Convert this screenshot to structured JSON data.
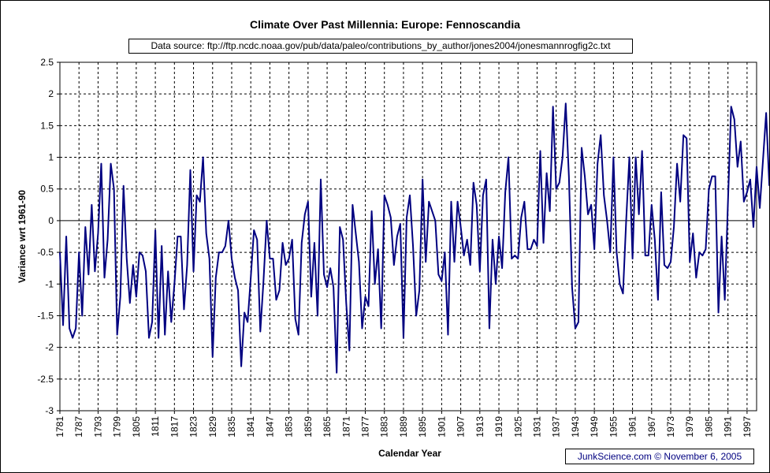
{
  "chart_data": {
    "type": "line",
    "title": "Climate Over Past Millennia: Europe: Fennoscandia",
    "subtitle": "Data source: ftp://ftp.ncdc.noaa.gov/pub/data/paleo/contributions_by_author/jones2004/jonesmannrogfig2c.txt",
    "xlabel": "Calendar Year",
    "ylabel": "Variance wrt 1961-90",
    "xlim": [
      1781,
      2000
    ],
    "ylim": [
      -3,
      2.5
    ],
    "y_ticks": [
      "2.5",
      "2",
      "1.5",
      "1",
      "0.5",
      "0",
      "-0.5",
      "-1",
      "-1.5",
      "-2",
      "-2.5",
      "-3"
    ],
    "x_tick_labels": [
      "1781",
      "1787",
      "1793",
      "1799",
      "1805",
      "1811",
      "1817",
      "1823",
      "1829",
      "1835",
      "1841",
      "1847",
      "1853",
      "1859",
      "1865",
      "1871",
      "1877",
      "1883",
      "1889",
      "1895",
      "1901",
      "1907",
      "1913",
      "1919",
      "1925",
      "1931",
      "1937",
      "1943",
      "1949",
      "1955",
      "1961",
      "1967",
      "1973",
      "1979",
      "1985",
      "1991",
      "1997"
    ],
    "grid": true,
    "series": [
      {
        "name": "Fennoscandia",
        "color": "#000080",
        "x_start": 1781,
        "x_step": 1,
        "values": [
          -0.5,
          -1.65,
          -0.25,
          -1.7,
          -1.85,
          -1.7,
          -0.5,
          -1.5,
          -0.1,
          -0.85,
          0.25,
          -0.8,
          -0.2,
          0.9,
          -0.9,
          -0.3,
          0.9,
          0.5,
          -1.8,
          -1.2,
          0.55,
          -0.6,
          -1.3,
          -0.7,
          -1.2,
          -0.5,
          -0.55,
          -0.8,
          -1.85,
          -1.6,
          -0.15,
          -1.85,
          -0.4,
          -1.8,
          -0.8,
          -1.6,
          -1.0,
          -0.25,
          -0.25,
          -1.4,
          -0.7,
          0.8,
          -0.8,
          0.4,
          0.3,
          1.0,
          -0.2,
          -0.6,
          -2.15,
          -0.9,
          -0.5,
          -0.5,
          -0.4,
          0.0,
          -0.6,
          -0.9,
          -1.1,
          -2.3,
          -1.45,
          -1.6,
          -0.9,
          -0.15,
          -0.3,
          -1.75,
          -0.95,
          0.0,
          -0.6,
          -0.6,
          -1.25,
          -1.1,
          -0.35,
          -0.7,
          -0.6,
          -0.3,
          -1.55,
          -1.8,
          -0.35,
          0.1,
          0.3,
          -1.2,
          -0.35,
          -1.5,
          0.65,
          -0.85,
          -1.05,
          -0.75,
          -1.05,
          -2.4,
          -0.1,
          -0.3,
          -1.3,
          -2.05,
          0.25,
          -0.2,
          -0.65,
          -1.7,
          -1.2,
          -1.35,
          0.15,
          -1.0,
          -0.45,
          -1.7,
          0.4,
          0.25,
          0.05,
          -0.7,
          -0.25,
          -0.05,
          -1.85,
          0.05,
          0.4,
          -0.4,
          -1.5,
          -1.1,
          0.65,
          -0.65,
          0.3,
          0.15,
          0.0,
          -0.85,
          -0.95,
          -0.5,
          -1.8,
          0.3,
          -0.65,
          0.3,
          -0.1,
          -0.55,
          -0.3,
          -0.7,
          0.6,
          0.25,
          -0.8,
          0.4,
          0.65,
          -1.7,
          -0.3,
          -1.0,
          -0.25,
          -0.75,
          0.45,
          1.0,
          -0.6,
          -0.55,
          -0.6,
          0.05,
          0.3,
          -0.45,
          -0.45,
          -0.3,
          -0.4,
          1.1,
          -0.35,
          0.75,
          0.15,
          1.8,
          0.5,
          0.6,
          1.0,
          1.85,
          0.7,
          -1.05,
          -1.7,
          -1.6,
          1.15,
          0.7,
          0.1,
          0.25,
          -0.45,
          0.9,
          1.35,
          0.4,
          0.0,
          -0.5,
          1.0,
          -0.5,
          -1.0,
          -1.15,
          0.0,
          1.0,
          -0.6,
          1.0,
          0.1,
          1.1,
          -0.55,
          -0.55,
          0.25,
          -0.3,
          -1.25,
          0.45,
          -0.7,
          -0.75,
          -0.65,
          -0.1,
          0.9,
          0.3,
          1.35,
          1.3,
          -0.65,
          -0.2,
          -0.9,
          -0.5,
          -0.55,
          -0.45,
          0.5,
          0.7,
          0.7,
          -1.45,
          -0.25,
          -1.25,
          0.3,
          1.8,
          1.6,
          0.85,
          1.25,
          0.3,
          0.45,
          0.65,
          -0.1,
          0.85,
          0.2,
          0.95,
          1.7,
          0.55
        ]
      }
    ]
  },
  "credit": {
    "site": "JunkScience.com",
    "copyright": "©",
    "date": "November 6, 2005"
  }
}
